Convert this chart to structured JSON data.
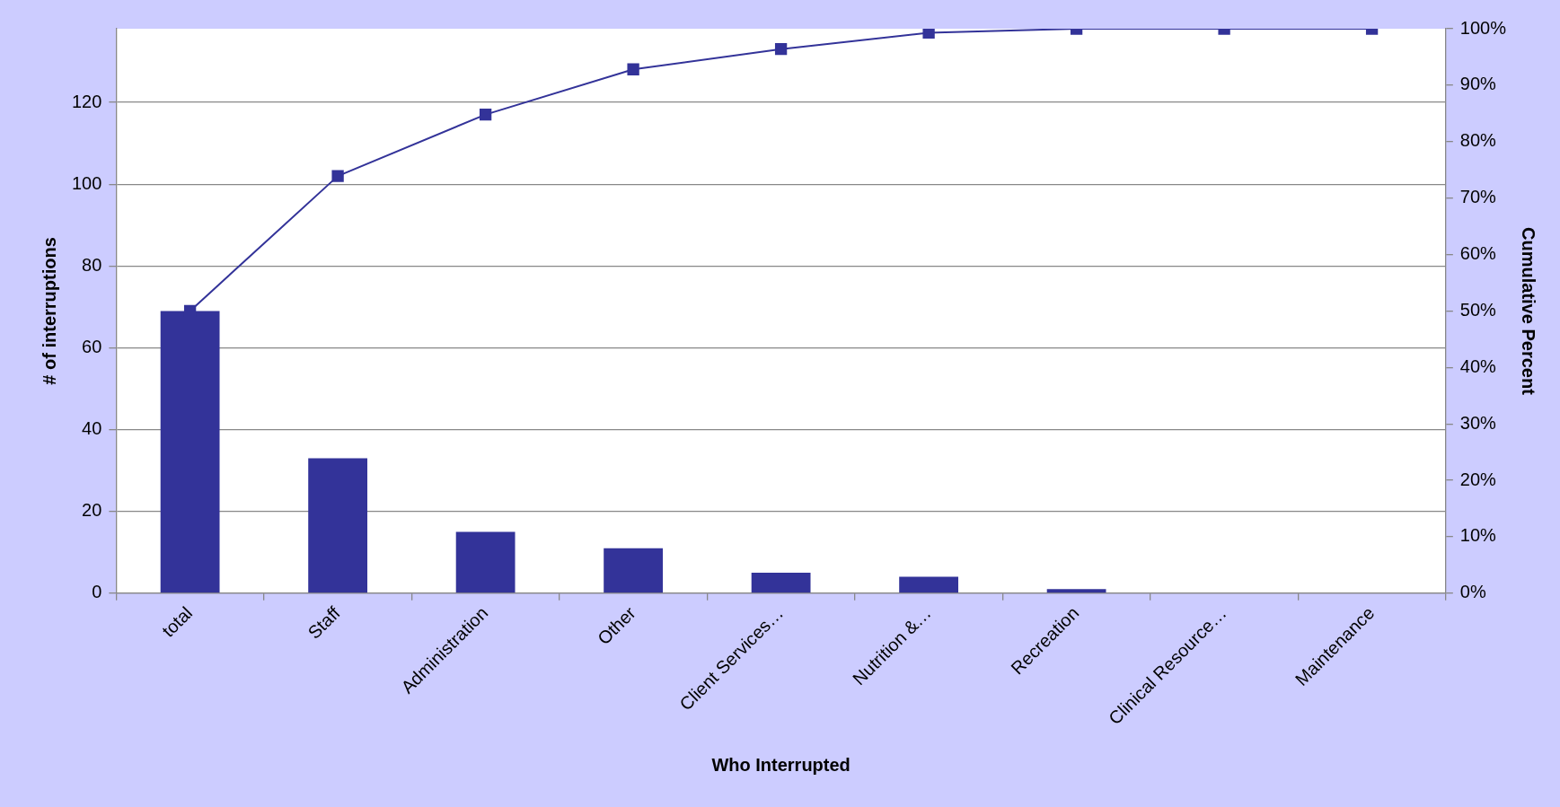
{
  "chart_data": {
    "type": "bar",
    "xlabel": "Who Interrupted",
    "ylabel": "# of interruptions",
    "y2label": "Cumulative Percent",
    "categories": [
      "total",
      "Staff",
      "Administration",
      "Other",
      "Client Services…",
      "Nutrition &…",
      "Recreation",
      "Clinical Resource…",
      "Maintenance"
    ],
    "series": [
      {
        "color": "#333399",
        "values": [
          69,
          33,
          15,
          11,
          5,
          4,
          1,
          0,
          0
        ]
      },
      {
        "type": "line",
        "axis": "y2",
        "color": "#333399",
        "values": [
          50,
          73.9,
          84.8,
          92.8,
          96.4,
          99.3,
          100,
          100,
          100
        ]
      }
    ],
    "ylim": [
      0,
      138
    ],
    "yticks": [
      0,
      20,
      40,
      60,
      80,
      100,
      120
    ],
    "y2lim": [
      0,
      100
    ],
    "y2ticks": [
      {
        "value": 0,
        "label": "0%"
      },
      {
        "value": 10,
        "label": "10%"
      },
      {
        "value": 20,
        "label": "20%"
      },
      {
        "value": 30,
        "label": "30%"
      },
      {
        "value": 40,
        "label": "40%"
      },
      {
        "value": 50,
        "label": "50%"
      },
      {
        "value": 60,
        "label": "60%"
      },
      {
        "value": 70,
        "label": "70%"
      },
      {
        "value": 80,
        "label": "80%"
      },
      {
        "value": 90,
        "label": "90%"
      },
      {
        "value": 100,
        "label": "100%"
      }
    ],
    "grid": "y",
    "legend": false,
    "marker": "square",
    "line_style": "solid"
  }
}
